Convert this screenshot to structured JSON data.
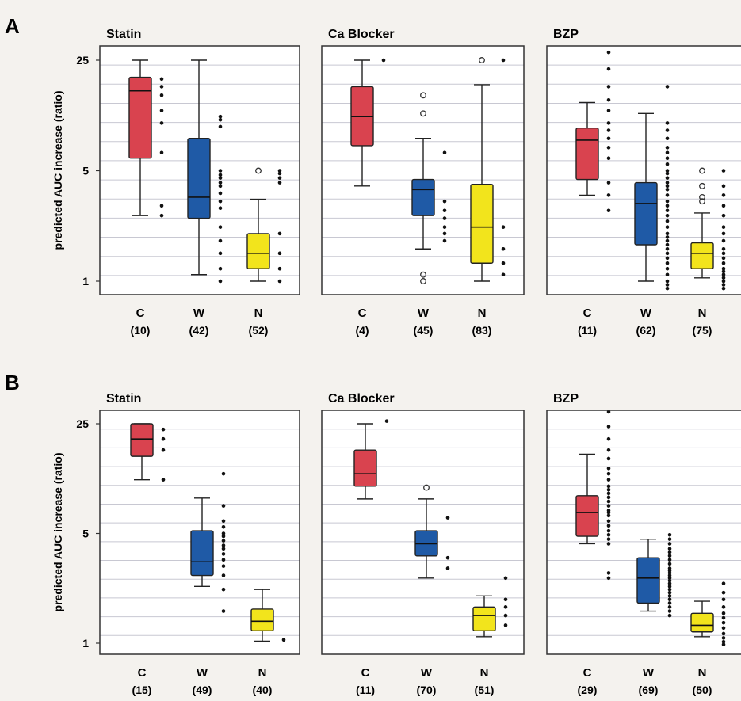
{
  "colors": {
    "C": "#d9434f",
    "W": "#1f5aa6",
    "N": "#f2e41c",
    "frame": "#333333",
    "grid": "#c8c8d2"
  },
  "chart_data": [
    {
      "type": "box",
      "panel": "A",
      "title": "Statin",
      "ylabel": "predicted AUC increase (ratio)",
      "yscale": "log",
      "yticks": [
        "1",
        "5",
        "25"
      ],
      "ylim": [
        0.85,
        32
      ],
      "groups": [
        {
          "label": "C",
          "n": "(10)",
          "color": "C",
          "whislo": 2.6,
          "q1": 6.0,
          "med": 16,
          "q3": 19.5,
          "whishi": 25,
          "outliers": [],
          "points": [
            19,
            17,
            15,
            12,
            10,
            6.5,
            3.0,
            2.6
          ]
        },
        {
          "label": "W",
          "n": "(42)",
          "color": "W",
          "whislo": 1.1,
          "q1": 2.5,
          "med": 3.4,
          "q3": 8.0,
          "whishi": 25,
          "outliers": [],
          "points": [
            11,
            10.5,
            9.5,
            5,
            4.7,
            4.5,
            4.2,
            4,
            3.6,
            3.2,
            2.9,
            2.2,
            1.8,
            1.5,
            1.2,
            1.0
          ]
        },
        {
          "label": "N",
          "n": "(52)",
          "color": "N",
          "whislo": 1.0,
          "q1": 1.2,
          "med": 1.5,
          "q3": 2.0,
          "whishi": 3.3,
          "outliers": [
            5.0
          ],
          "points": [
            5.0,
            4.8,
            4.5,
            4.2,
            2.0,
            1.5,
            1.2,
            1.0
          ]
        }
      ]
    },
    {
      "type": "box",
      "panel": "A",
      "title": "Ca Blocker",
      "yscale": "log",
      "yticks": [
        "1",
        "5",
        "25"
      ],
      "ylim": [
        0.85,
        32
      ],
      "groups": [
        {
          "label": "C",
          "n": "(4)",
          "color": "C",
          "whislo": 4.0,
          "q1": 7.2,
          "med": 11,
          "q3": 17,
          "whishi": 25,
          "outliers": [],
          "points": [
            25
          ]
        },
        {
          "label": "W",
          "n": "(45)",
          "color": "W",
          "whislo": 1.6,
          "q1": 2.6,
          "med": 3.8,
          "q3": 4.4,
          "whishi": 8.0,
          "outliers": [
            15.0,
            11.5,
            1.1,
            1.0
          ],
          "points": [
            6.5,
            3.2,
            2.8,
            2.5,
            2.2,
            2.0,
            1.8
          ]
        },
        {
          "label": "N",
          "n": "(83)",
          "color": "N",
          "whislo": 1.0,
          "q1": 1.3,
          "med": 2.2,
          "q3": 4.1,
          "whishi": 17.5,
          "outliers": [
            25
          ],
          "points": [
            25,
            2.2,
            1.6,
            1.3,
            1.1
          ]
        }
      ]
    },
    {
      "type": "box",
      "panel": "A",
      "title": "BZP",
      "yscale": "log",
      "yticks": [
        "1",
        "5",
        "25"
      ],
      "ylim": [
        0.85,
        32
      ],
      "groups": [
        {
          "label": "C",
          "n": "(11)",
          "color": "C",
          "whislo": 3.5,
          "q1": 4.4,
          "med": 7.8,
          "q3": 9.3,
          "whishi": 13.5,
          "outliers": [],
          "points": [
            28,
            22,
            17,
            14,
            12,
            10,
            9,
            8,
            7,
            6,
            4.2,
            3.5,
            2.8
          ]
        },
        {
          "label": "W",
          "n": "(62)",
          "color": "W",
          "whislo": 1.0,
          "q1": 1.7,
          "med": 3.1,
          "q3": 4.2,
          "whishi": 11.5,
          "outliers": [],
          "points": [
            17,
            10,
            9,
            8,
            7,
            6.5,
            6,
            5.5,
            5,
            4.8,
            4.5,
            4.2,
            4,
            3.8,
            3.5,
            3.2,
            3,
            2.8,
            2.6,
            2.4,
            2.2,
            2,
            1.9,
            1.8,
            1.7,
            1.6,
            1.5,
            1.4,
            1.3,
            1.2,
            1.1,
            1.0,
            0.95,
            0.9
          ]
        },
        {
          "label": "N",
          "n": "(75)",
          "color": "N",
          "whislo": 1.05,
          "q1": 1.2,
          "med": 1.5,
          "q3": 1.75,
          "whishi": 2.7,
          "outliers": [
            5.0,
            4.0,
            3.4,
            3.2
          ],
          "points": [
            5,
            4,
            3.5,
            3,
            2.6,
            2.2,
            2,
            1.8,
            1.6,
            1.5,
            1.4,
            1.3,
            1.2,
            1.15,
            1.1,
            1.05,
            1.0,
            0.95,
            0.9
          ]
        }
      ]
    },
    {
      "type": "box",
      "panel": "B",
      "title": "Statin",
      "ylabel": "predicted AUC increase (ratio)",
      "yscale": "log",
      "yticks": [
        "1",
        "5",
        "25"
      ],
      "ylim": [
        0.85,
        32
      ],
      "groups": [
        {
          "label": "C",
          "n": "(15)",
          "color": "C",
          "whislo": 11.0,
          "q1": 15.5,
          "med": 20,
          "q3": 25,
          "whishi": 25,
          "outliers": [],
          "points": [
            23,
            20,
            17,
            11
          ]
        },
        {
          "label": "W",
          "n": "(49)",
          "color": "W",
          "whislo": 2.3,
          "q1": 2.7,
          "med": 3.3,
          "q3": 5.2,
          "whishi": 8.4,
          "outliers": [],
          "points": [
            12,
            7.5,
            6,
            5.5,
            5,
            4.8,
            4.5,
            4.2,
            4,
            3.7,
            3.4,
            3.1,
            2.7,
            2.2,
            1.6
          ]
        },
        {
          "label": "N",
          "n": "(40)",
          "color": "N",
          "whislo": 1.03,
          "q1": 1.2,
          "med": 1.38,
          "q3": 1.65,
          "whishi": 2.2,
          "outliers": [],
          "points": [
            1.05
          ]
        }
      ]
    },
    {
      "type": "box",
      "panel": "B",
      "title": "Ca Blocker",
      "yscale": "log",
      "yticks": [
        "1",
        "5",
        "25"
      ],
      "ylim": [
        0.85,
        32
      ],
      "groups": [
        {
          "label": "C",
          "n": "(11)",
          "color": "C",
          "whislo": 8.3,
          "q1": 10.0,
          "med": 12,
          "q3": 17,
          "whishi": 25,
          "outliers": [],
          "points": [
            26
          ]
        },
        {
          "label": "W",
          "n": "(70)",
          "color": "W",
          "whislo": 2.6,
          "q1": 3.6,
          "med": 4.3,
          "q3": 5.2,
          "whishi": 8.3,
          "outliers": [
            9.8
          ],
          "points": [
            6.3,
            3.5,
            3.0
          ]
        },
        {
          "label": "N",
          "n": "(51)",
          "color": "N",
          "whislo": 1.1,
          "q1": 1.2,
          "med": 1.5,
          "q3": 1.7,
          "whishi": 2.0,
          "outliers": [],
          "points": [
            2.6,
            1.9,
            1.7,
            1.5,
            1.3
          ]
        }
      ]
    },
    {
      "type": "box",
      "panel": "B",
      "title": "BZP",
      "yscale": "log",
      "yticks": [
        "1",
        "5",
        "25"
      ],
      "ylim": [
        0.85,
        32
      ],
      "groups": [
        {
          "label": "C",
          "n": "(29)",
          "color": "C",
          "whislo": 4.3,
          "q1": 4.8,
          "med": 6.8,
          "q3": 8.7,
          "whishi": 16,
          "outliers": [],
          "points": [
            30,
            24,
            20,
            17,
            15,
            13,
            12,
            11,
            10,
            9.5,
            9,
            8.5,
            8,
            7.5,
            7,
            6.8,
            6.5,
            6,
            5.6,
            5.2,
            4.9,
            4.6,
            4.3,
            2.8,
            2.6
          ]
        },
        {
          "label": "W",
          "n": "(69)",
          "color": "W",
          "whislo": 1.6,
          "q1": 1.8,
          "med": 2.6,
          "q3": 3.5,
          "whishi": 4.6,
          "outliers": [],
          "points": [
            4.9,
            4.6,
            4.3,
            4,
            3.8,
            3.6,
            3.4,
            3.2,
            3,
            2.9,
            2.8,
            2.7,
            2.6,
            2.5,
            2.4,
            2.3,
            2.2,
            2.1,
            2.0,
            1.9,
            1.8,
            1.7,
            1.6,
            1.5
          ]
        },
        {
          "label": "N",
          "n": "(50)",
          "color": "N",
          "whislo": 1.1,
          "q1": 1.18,
          "med": 1.3,
          "q3": 1.55,
          "whishi": 1.85,
          "outliers": [],
          "points": [
            2.4,
            2.1,
            1.9,
            1.7,
            1.55,
            1.45,
            1.35,
            1.25,
            1.15,
            1.08,
            1.02,
            0.98
          ]
        }
      ]
    }
  ]
}
